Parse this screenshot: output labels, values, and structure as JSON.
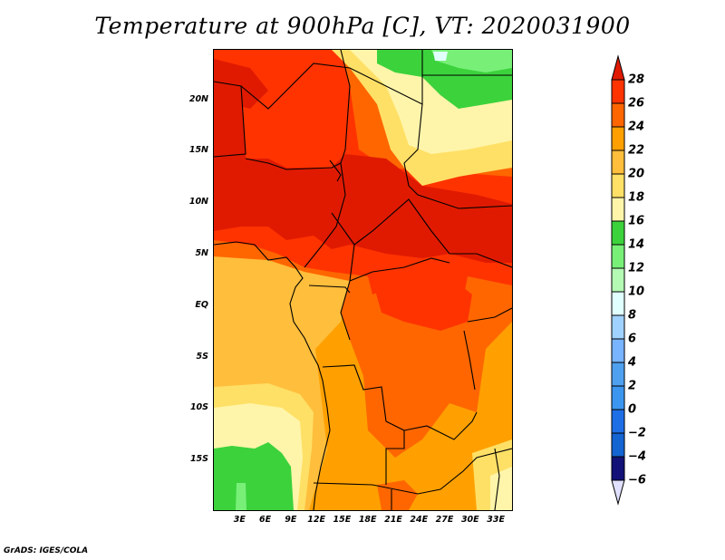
{
  "title": "Temperature at 900hPa [C], VT: 2020031900",
  "credit": "GrADS: IGES/COLA",
  "map": {
    "lat_ticks": [
      {
        "label": "20N",
        "deg": 20
      },
      {
        "label": "15N",
        "deg": 15
      },
      {
        "label": "10N",
        "deg": 10
      },
      {
        "label": "5N",
        "deg": 5
      },
      {
        "label": "EQ",
        "deg": 0
      },
      {
        "label": "5S",
        "deg": -5
      },
      {
        "label": "10S",
        "deg": -10
      },
      {
        "label": "15S",
        "deg": -15
      }
    ],
    "lon_ticks": [
      {
        "label": "3E",
        "deg": 3
      },
      {
        "label": "6E",
        "deg": 6
      },
      {
        "label": "9E",
        "deg": 9
      },
      {
        "label": "12E",
        "deg": 12
      },
      {
        "label": "15E",
        "deg": 15
      },
      {
        "label": "18E",
        "deg": 18
      },
      {
        "label": "21E",
        "deg": 21
      },
      {
        "label": "24E",
        "deg": 24
      },
      {
        "label": "27E",
        "deg": 27
      },
      {
        "label": "30E",
        "deg": 30
      },
      {
        "label": "33E",
        "deg": 33
      }
    ],
    "lat_range": [
      -19.9,
      24.8
    ],
    "lon_range": [
      0,
      34.9
    ]
  },
  "colorbar": {
    "labels": [
      "28",
      "26",
      "24",
      "22",
      "20",
      "18",
      "16",
      "14",
      "12",
      "10",
      "8",
      "6",
      "4",
      "2",
      "0",
      "−2",
      "−4",
      "−6"
    ],
    "over_color": "#e01a00",
    "under_color": "#e0e0ff",
    "colors": [
      "#ff3300",
      "#ff6600",
      "#ffa000",
      "#ffbe3c",
      "#ffe066",
      "#fff5aa",
      "#3cd23c",
      "#78f078",
      "#b4fab4",
      "#e0ffff",
      "#a0d2ff",
      "#78b4ff",
      "#50a0f0",
      "#3c96f0",
      "#1e6ee6",
      "#1464d2",
      "#121278"
    ]
  }
}
